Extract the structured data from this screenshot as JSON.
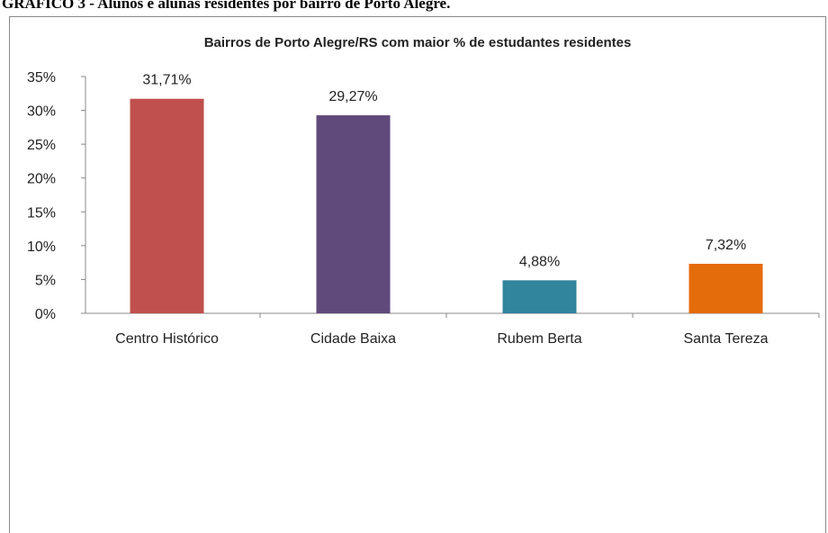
{
  "heading": "GRÁFICO 3 - Alunos e alunas residentes por bairro de Porto Alegre.",
  "chart_data": {
    "type": "bar",
    "title": "Bairros de Porto Alegre/RS com maior % de estudantes residentes",
    "categories": [
      "Centro Histórico",
      "Cidade Baixa",
      "Rubem Berta",
      "Santa Tereza"
    ],
    "values": [
      31.71,
      29.27,
      4.88,
      7.32
    ],
    "value_labels": [
      "31,71%",
      "29,27%",
      "4,88%",
      "7,32%"
    ],
    "colors": [
      "#c0504d",
      "#604a7b",
      "#31859c",
      "#e46c0a"
    ],
    "ylim": [
      0,
      35
    ],
    "yticks": [
      {
        "value": 0,
        "label": "0%"
      },
      {
        "value": 5,
        "label": "5%"
      },
      {
        "value": 10,
        "label": "10%"
      },
      {
        "value": 15,
        "label": "15%"
      },
      {
        "value": 20,
        "label": "20%"
      },
      {
        "value": 25,
        "label": "25%"
      },
      {
        "value": 30,
        "label": "30%"
      },
      {
        "value": 35,
        "label": "35%"
      }
    ],
    "grid": false
  }
}
